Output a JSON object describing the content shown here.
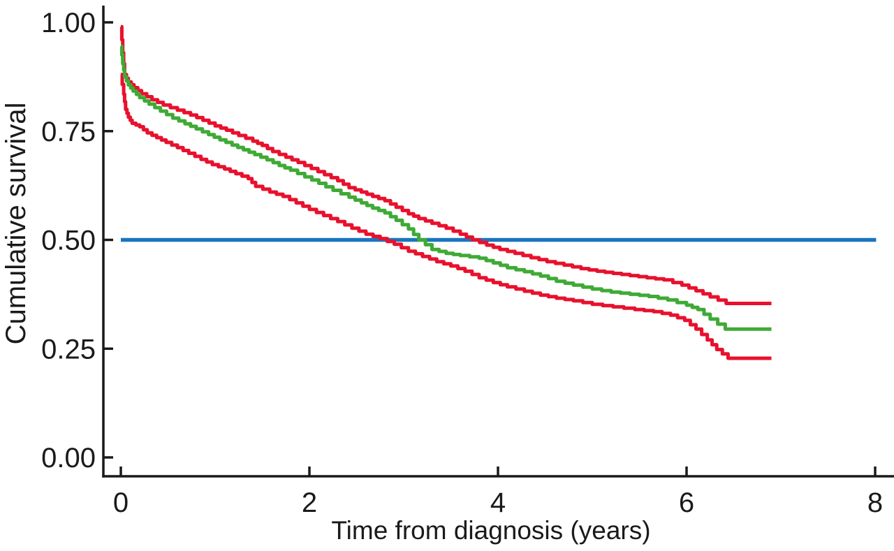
{
  "figure": {
    "background_color": "#ffffff",
    "axis_color": "#1a1a1a"
  },
  "chart_data": {
    "type": "line",
    "subtype": "kaplan-meier-step-curves",
    "title": "",
    "xlabel": "Time from diagnosis (years)",
    "ylabel": "Cumulative survival",
    "xlim": [
      0,
      8
    ],
    "ylim": [
      0.0,
      1.0
    ],
    "xticks": [
      0,
      2,
      4,
      6,
      8
    ],
    "yticks": [
      "0.00",
      "0.25",
      "0.50",
      "0.75",
      "1.00"
    ],
    "grid": false,
    "legend": null,
    "reference_line": {
      "name": "median-survival-reference",
      "y": 0.5,
      "x_start": 0,
      "x_end": 8.01,
      "color": "#1b75bc"
    },
    "series": [
      {
        "name": "ci-upper-band",
        "color": "#e8112d",
        "points": [
          [
            0,
            0.99
          ],
          [
            0.02,
            0.93
          ],
          [
            0.04,
            0.88
          ],
          [
            0.08,
            0.863
          ],
          [
            0.14,
            0.85
          ],
          [
            0.22,
            0.836
          ],
          [
            0.33,
            0.822
          ],
          [
            0.45,
            0.81
          ],
          [
            0.6,
            0.798
          ],
          [
            0.74,
            0.787
          ],
          [
            0.87,
            0.775
          ],
          [
            1.0,
            0.762
          ],
          [
            1.12,
            0.752
          ],
          [
            1.25,
            0.74
          ],
          [
            1.4,
            0.727
          ],
          [
            1.5,
            0.717
          ],
          [
            1.61,
            0.703
          ],
          [
            1.75,
            0.69
          ],
          [
            1.88,
            0.678
          ],
          [
            2.02,
            0.664
          ],
          [
            2.16,
            0.65
          ],
          [
            2.3,
            0.636
          ],
          [
            2.42,
            0.62
          ],
          [
            2.55,
            0.61
          ],
          [
            2.67,
            0.6
          ],
          [
            2.8,
            0.59
          ],
          [
            2.92,
            0.575
          ],
          [
            3.05,
            0.56
          ],
          [
            3.16,
            0.549
          ],
          [
            3.3,
            0.538
          ],
          [
            3.45,
            0.527
          ],
          [
            3.6,
            0.513
          ],
          [
            3.73,
            0.5
          ],
          [
            3.88,
            0.488
          ],
          [
            4.02,
            0.478
          ],
          [
            4.18,
            0.469
          ],
          [
            4.35,
            0.459
          ],
          [
            4.52,
            0.45
          ],
          [
            4.7,
            0.442
          ],
          [
            4.88,
            0.434
          ],
          [
            5.05,
            0.428
          ],
          [
            5.22,
            0.423
          ],
          [
            5.4,
            0.418
          ],
          [
            5.58,
            0.413
          ],
          [
            5.76,
            0.408
          ],
          [
            5.95,
            0.396
          ],
          [
            6.1,
            0.383
          ],
          [
            6.25,
            0.369
          ],
          [
            6.42,
            0.354
          ],
          [
            6.9,
            0.354
          ]
        ]
      },
      {
        "name": "ci-lower-band",
        "color": "#e8112d",
        "points": [
          [
            0,
            0.88
          ],
          [
            0.03,
            0.835
          ],
          [
            0.05,
            0.8
          ],
          [
            0.08,
            0.782
          ],
          [
            0.12,
            0.768
          ],
          [
            0.2,
            0.76
          ],
          [
            0.28,
            0.746
          ],
          [
            0.38,
            0.735
          ],
          [
            0.48,
            0.724
          ],
          [
            0.6,
            0.712
          ],
          [
            0.72,
            0.699
          ],
          [
            0.85,
            0.685
          ],
          [
            0.97,
            0.673
          ],
          [
            1.1,
            0.663
          ],
          [
            1.22,
            0.652
          ],
          [
            1.35,
            0.641
          ],
          [
            1.43,
            0.623
          ],
          [
            1.58,
            0.61
          ],
          [
            1.72,
            0.6
          ],
          [
            1.86,
            0.585
          ],
          [
            2.0,
            0.57
          ],
          [
            2.15,
            0.556
          ],
          [
            2.3,
            0.542
          ],
          [
            2.45,
            0.527
          ],
          [
            2.6,
            0.513
          ],
          [
            2.75,
            0.503
          ],
          [
            2.9,
            0.49
          ],
          [
            3.05,
            0.474
          ],
          [
            3.2,
            0.462
          ],
          [
            3.35,
            0.45
          ],
          [
            3.5,
            0.44
          ],
          [
            3.65,
            0.428
          ],
          [
            3.8,
            0.413
          ],
          [
            3.95,
            0.402
          ],
          [
            4.1,
            0.392
          ],
          [
            4.28,
            0.382
          ],
          [
            4.45,
            0.373
          ],
          [
            4.62,
            0.366
          ],
          [
            4.8,
            0.36
          ],
          [
            5.0,
            0.352
          ],
          [
            5.22,
            0.346
          ],
          [
            5.45,
            0.34
          ],
          [
            5.65,
            0.335
          ],
          [
            5.83,
            0.327
          ],
          [
            5.98,
            0.315
          ],
          [
            6.1,
            0.295
          ],
          [
            6.22,
            0.27
          ],
          [
            6.32,
            0.248
          ],
          [
            6.44,
            0.228
          ],
          [
            6.9,
            0.228
          ]
        ]
      },
      {
        "name": "survival-estimate",
        "color": "#3faa35",
        "points": [
          [
            0,
            0.945
          ],
          [
            0.02,
            0.905
          ],
          [
            0.04,
            0.875
          ],
          [
            0.08,
            0.856
          ],
          [
            0.13,
            0.842
          ],
          [
            0.2,
            0.827
          ],
          [
            0.3,
            0.812
          ],
          [
            0.42,
            0.796
          ],
          [
            0.55,
            0.78
          ],
          [
            0.68,
            0.767
          ],
          [
            0.8,
            0.755
          ],
          [
            0.93,
            0.742
          ],
          [
            1.05,
            0.73
          ],
          [
            1.18,
            0.718
          ],
          [
            1.3,
            0.707
          ],
          [
            1.42,
            0.696
          ],
          [
            1.55,
            0.684
          ],
          [
            1.68,
            0.671
          ],
          [
            1.8,
            0.66
          ],
          [
            1.95,
            0.645
          ],
          [
            2.1,
            0.63
          ],
          [
            2.25,
            0.614
          ],
          [
            2.42,
            0.598
          ],
          [
            2.55,
            0.585
          ],
          [
            2.67,
            0.573
          ],
          [
            2.8,
            0.562
          ],
          [
            2.92,
            0.545
          ],
          [
            3.05,
            0.525
          ],
          [
            3.16,
            0.5
          ],
          [
            3.3,
            0.478
          ],
          [
            3.45,
            0.469
          ],
          [
            3.6,
            0.464
          ],
          [
            3.8,
            0.458
          ],
          [
            3.95,
            0.447
          ],
          [
            4.1,
            0.436
          ],
          [
            4.28,
            0.427
          ],
          [
            4.45,
            0.417
          ],
          [
            4.62,
            0.405
          ],
          [
            4.8,
            0.396
          ],
          [
            5.0,
            0.387
          ],
          [
            5.2,
            0.38
          ],
          [
            5.4,
            0.375
          ],
          [
            5.6,
            0.37
          ],
          [
            5.8,
            0.362
          ],
          [
            6.0,
            0.35
          ],
          [
            6.12,
            0.34
          ],
          [
            6.25,
            0.318
          ],
          [
            6.41,
            0.295
          ],
          [
            6.9,
            0.295
          ]
        ]
      }
    ]
  }
}
